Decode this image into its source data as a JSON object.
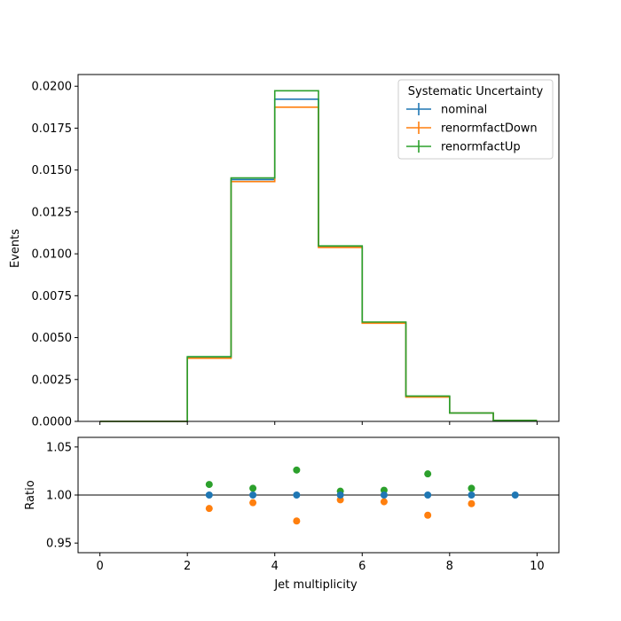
{
  "chart_data": [
    {
      "type": "step",
      "ylabel": "Events",
      "xlim": [
        -0.5,
        10.5
      ],
      "ylim": [
        0,
        0.0207
      ],
      "bin_edges": [
        0,
        1,
        2,
        3,
        4,
        5,
        6,
        7,
        8,
        9,
        10
      ],
      "yticks": [
        0.0,
        0.0025,
        0.005,
        0.0075,
        0.01,
        0.0125,
        0.015,
        0.0175,
        0.02
      ],
      "ytick_labels": [
        "0.0000",
        "0.0025",
        "0.0050",
        "0.0075",
        "0.0100",
        "0.0125",
        "0.0150",
        "0.0175",
        "0.0200"
      ],
      "legend": {
        "title": "Systematic Uncertainty",
        "position": "upper right"
      },
      "series": [
        {
          "name": "nominal",
          "color": "#1f77b4",
          "values": [
            0.0,
            0.0,
            0.00382,
            0.01443,
            0.01923,
            0.01043,
            0.0059,
            0.00148,
            0.0005,
            6e-05
          ]
        },
        {
          "name": "renormfactDown",
          "color": "#ff7f0e",
          "values": [
            0.0,
            0.0,
            0.00377,
            0.01431,
            0.01875,
            0.01038,
            0.00586,
            0.00145,
            0.0005,
            6e-05
          ]
        },
        {
          "name": "renormfactUp",
          "color": "#2ca02c",
          "values": [
            0.0,
            0.0,
            0.00386,
            0.01453,
            0.01973,
            0.01047,
            0.00593,
            0.00151,
            0.0005,
            6e-05
          ]
        }
      ]
    },
    {
      "type": "scatter",
      "xlabel": "Jet multiplicity",
      "ylabel": "Ratio",
      "xlim": [
        -0.5,
        10.5
      ],
      "ylim": [
        0.94,
        1.06
      ],
      "xticks": [
        0,
        2,
        4,
        6,
        8,
        10
      ],
      "xtick_labels": [
        "0",
        "2",
        "4",
        "6",
        "8",
        "10"
      ],
      "yticks": [
        0.95,
        1.0,
        1.05
      ],
      "ytick_labels": [
        "0.95",
        "1.00",
        "1.05"
      ],
      "reference_line": 1.0,
      "series": [
        {
          "name": "nominal",
          "color": "#1f77b4",
          "x": [
            2.5,
            3.5,
            4.5,
            5.5,
            6.5,
            7.5,
            8.5,
            9.5
          ],
          "y": [
            1.0,
            1.0,
            1.0,
            1.0,
            1.0,
            1.0,
            1.0,
            1.0
          ]
        },
        {
          "name": "renormfactDown",
          "color": "#ff7f0e",
          "x": [
            2.5,
            3.5,
            4.5,
            5.5,
            6.5,
            7.5,
            8.5
          ],
          "y": [
            0.986,
            0.992,
            0.973,
            0.995,
            0.993,
            0.979,
            0.991
          ]
        },
        {
          "name": "renormfactUp",
          "color": "#2ca02c",
          "x": [
            2.5,
            3.5,
            4.5,
            5.5,
            6.5,
            7.5,
            8.5
          ],
          "y": [
            1.011,
            1.007,
            1.026,
            1.004,
            1.005,
            1.022,
            1.007
          ]
        }
      ]
    }
  ]
}
